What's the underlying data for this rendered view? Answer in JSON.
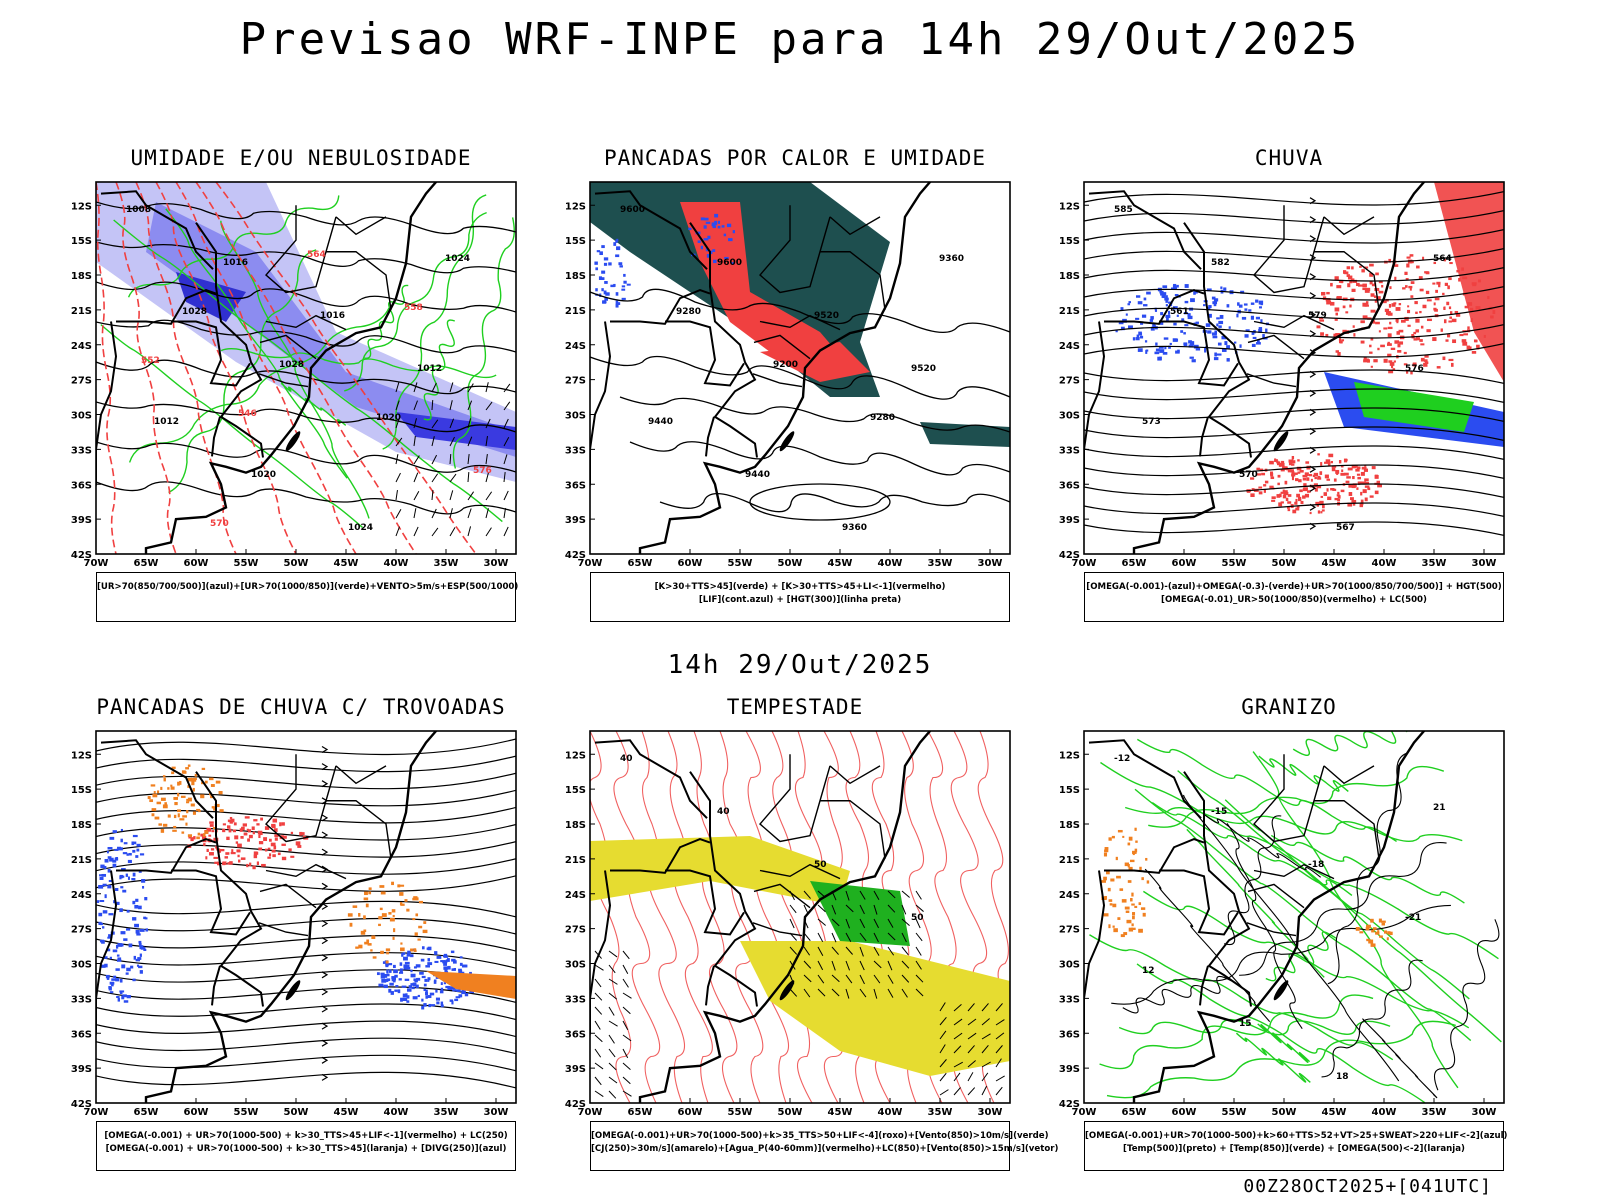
{
  "header": {
    "title": "Previsao WRF-INPE  para 14h 29/Out/2025"
  },
  "middle": {
    "subtitle": "14h 29/Out/2025"
  },
  "footer": {
    "run_stamp": "00Z28OCT2025+[041UTC]"
  },
  "axes": {
    "lat_labels": [
      "12S",
      "15S",
      "18S",
      "21S",
      "24S",
      "27S",
      "30S",
      "33S",
      "36S",
      "39S",
      "42S"
    ],
    "lon_labels": [
      "70W",
      "65W",
      "60W",
      "55W",
      "50W",
      "45W",
      "40W",
      "35W",
      "30W"
    ]
  },
  "colors": {
    "blue": "#2b4cf0",
    "light_blue": "#b8b8f4",
    "green": "#1fcf1f",
    "red": "#f04040",
    "dark_teal": "#1e4f4f",
    "orange": "#f08020",
    "yellow": "#e6dc30",
    "salmon": "#f06060"
  },
  "panels": [
    {
      "title": "UMIDADE E/OU NEBULOSIDADE",
      "legend": [
        "[UR>70(850/700/500)](azul)+[UR>70(1000/850)](verde)+VENTO>5m/s+ESP(500/1000)"
      ],
      "contour_labels": [
        "1008",
        "1016",
        "1016",
        "1012",
        "1012",
        "1020",
        "1024",
        "1024",
        "1028",
        "1028",
        "1020",
        "576",
        "570",
        "564",
        "558",
        "552",
        "546"
      ]
    },
    {
      "title": "PANCADAS POR CALOR E UMIDADE",
      "legend": [
        "[K>30+TTS>45](verde)  +  [K>30+TTS>45+LI<-1](vermelho)",
        "[LIF](cont.azul)  +  [HGT(300)](linha preta)"
      ],
      "contour_labels": [
        "9600",
        "9600",
        "9520",
        "9520",
        "9440",
        "9440",
        "9360",
        "9360",
        "9280",
        "9200",
        "9280"
      ]
    },
    {
      "title": "CHUVA",
      "legend": [
        "[OMEGA(-0.001)-(azul)+OMEGA(-0.3)-(verde)+UR>70(1000/850/700/500)]  +  HGT(500)",
        "[OMEGA(-0.01)_UR>50(1000/850)(vermelho)  +  LC(500)"
      ],
      "contour_labels": [
        "585",
        "582",
        "579",
        "576",
        "573",
        "570",
        "567",
        "564",
        "561"
      ]
    },
    {
      "title": "PANCADAS DE CHUVA C/ TROVOADAS",
      "legend": [
        "[OMEGA(-0.001)  +  UR>70(1000-500)  +  k>30_TTS>45+LIF<-1](vermelho)  +  LC(250)",
        "[OMEGA(-0.001)  +  UR>70(1000-500)  +  k>30_TTS>45](laranja)  +  [DIVG(250)](azul)"
      ],
      "contour_labels": []
    },
    {
      "title": "TEMPESTADE",
      "legend": [
        "[OMEGA(-0.001)+UR>70(1000-500)+k>35_TTS>50+LIF<-4](roxo)+[Vento(850)>10m/s](verde)",
        "[CJ(250)>30m/s](amarelo)+[Agua_P(40-60mm)](vermelho)+LC(850)+[Vento(850)>15m/s](vetor)"
      ],
      "contour_labels": [
        "40",
        "40",
        "50",
        "50"
      ]
    },
    {
      "title": "GRANIZO",
      "legend": [
        "[OMEGA(-0.001)+UR>70(1000-500)+k>60+TTS>52+VT>25+SWEAT>220+LIF<-2](azul)",
        "[Temp(500)](preto)  +  [Temp(850)](verde)  +  [OMEGA(500)<-2](laranja)"
      ],
      "contour_labels": [
        "-12",
        "-15",
        "-18",
        "-21",
        "12",
        "15",
        "18",
        "21"
      ]
    }
  ]
}
